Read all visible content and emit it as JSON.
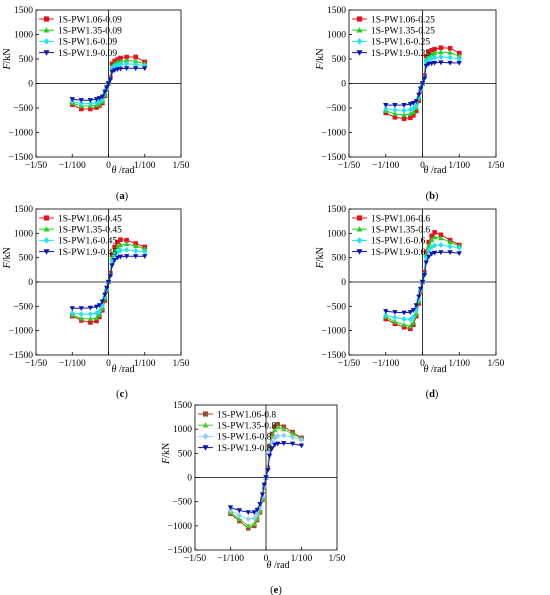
{
  "series_styles": [
    {
      "color": "#e8101a",
      "marker": "square"
    },
    {
      "color": "#1ed21e",
      "marker": "triangle-up"
    },
    {
      "color": "#1ee6f0",
      "marker": "diamond"
    },
    {
      "color": "#0a14b4",
      "marker": "triangle-down"
    }
  ],
  "series_styles_e": [
    {
      "color": "#9b4a2a",
      "marker": "square"
    },
    {
      "color": "#4fcd2b",
      "marker": "triangle-up"
    },
    {
      "color": "#8ecdf5",
      "marker": "diamond"
    },
    {
      "color": "#0a14b4",
      "marker": "triangle-down"
    }
  ],
  "chart_data": [
    {
      "type": "line",
      "panel_label": "(a)",
      "xlabel_symbol": "θ",
      "xlabel_unit": "/rad",
      "ylabel_symbol": "F",
      "ylabel_unit": "/kN",
      "xlim": [
        -0.02,
        0.02
      ],
      "ylim": [
        -1500,
        1500
      ],
      "xticks": [
        -0.02,
        -0.01,
        0,
        0.01,
        0.02
      ],
      "xtick_labels": [
        "−1/50",
        "−1/100",
        "0",
        "1/100",
        "1/50"
      ],
      "yticks": [
        -1500,
        -1000,
        -500,
        0,
        500,
        1000,
        1500
      ],
      "ytick_labels": [
        "−1500",
        "−1000",
        "−500",
        "0",
        "500",
        "1000",
        "1500"
      ],
      "legend_position": "top-left",
      "x": [
        -0.01,
        -0.0075,
        -0.005,
        -0.0033,
        -0.0025,
        -0.0017,
        -0.001,
        -0.0005,
        0,
        0.0005,
        0.001,
        0.0017,
        0.0025,
        0.0033,
        0.005,
        0.0075,
        0.01
      ],
      "series": [
        {
          "name": "1S-PW1.06-0.09",
          "values": [
            -430,
            -520,
            -520,
            -490,
            -450,
            -400,
            -250,
            -120,
            0,
            120,
            400,
            460,
            490,
            520,
            540,
            540,
            440
          ]
        },
        {
          "name": "1S-PW1.35-0.09",
          "values": [
            -400,
            -460,
            -460,
            -440,
            -420,
            -370,
            -230,
            -110,
            0,
            110,
            350,
            400,
            440,
            450,
            470,
            460,
            400
          ]
        },
        {
          "name": "1S-PW1.6-0.09",
          "values": [
            -360,
            -410,
            -410,
            -390,
            -370,
            -330,
            -200,
            -100,
            0,
            100,
            310,
            350,
            380,
            390,
            400,
            390,
            360
          ]
        },
        {
          "name": "1S-PW1.9-0.09",
          "values": [
            -320,
            -340,
            -340,
            -320,
            -300,
            -270,
            -170,
            -80,
            0,
            80,
            240,
            270,
            290,
            300,
            310,
            310,
            310
          ]
        }
      ]
    },
    {
      "type": "line",
      "panel_label": "(b)",
      "xlabel_symbol": "θ",
      "xlabel_unit": "/rad",
      "ylabel_symbol": "F",
      "ylabel_unit": "/kN",
      "xlim": [
        -0.02,
        0.02
      ],
      "ylim": [
        -1500,
        1500
      ],
      "xticks": [
        -0.02,
        -0.01,
        0,
        0.01,
        0.02
      ],
      "xtick_labels": [
        "−1/50",
        "−1/100",
        "0",
        "1/100",
        "1/50"
      ],
      "yticks": [
        -1500,
        -1000,
        -500,
        0,
        500,
        1000,
        1500
      ],
      "ytick_labels": [
        "−1500",
        "−1000",
        "−500",
        "0",
        "500",
        "1000",
        "1500"
      ],
      "legend_position": "top-left",
      "x": [
        -0.01,
        -0.0075,
        -0.005,
        -0.0033,
        -0.0025,
        -0.0017,
        -0.001,
        -0.0005,
        0,
        0.0005,
        0.001,
        0.0017,
        0.0025,
        0.0033,
        0.005,
        0.0075,
        0.01
      ],
      "series": [
        {
          "name": "1S-PW1.06-0.25",
          "values": [
            -600,
            -690,
            -720,
            -700,
            -650,
            -560,
            -350,
            -160,
            0,
            160,
            560,
            640,
            680,
            700,
            730,
            720,
            620
          ]
        },
        {
          "name": "1S-PW1.35-0.25",
          "values": [
            -560,
            -620,
            -640,
            -620,
            -580,
            -500,
            -310,
            -140,
            0,
            140,
            500,
            560,
            600,
            620,
            640,
            630,
            560
          ]
        },
        {
          "name": "1S-PW1.6-0.25",
          "values": [
            -520,
            -540,
            -550,
            -530,
            -510,
            -450,
            -280,
            -120,
            0,
            120,
            440,
            490,
            520,
            530,
            540,
            530,
            500
          ]
        },
        {
          "name": "1S-PW1.9-0.25",
          "values": [
            -440,
            -440,
            -440,
            -420,
            -400,
            -360,
            -230,
            -100,
            0,
            100,
            360,
            400,
            410,
            420,
            430,
            420,
            420
          ]
        }
      ]
    },
    {
      "type": "line",
      "panel_label": "(c)",
      "xlabel_symbol": "θ",
      "xlabel_unit": "/rad",
      "ylabel_symbol": "F",
      "ylabel_unit": "/kN",
      "xlim": [
        -0.02,
        0.02
      ],
      "ylim": [
        -1500,
        1500
      ],
      "xticks": [
        -0.02,
        -0.01,
        0,
        0.01,
        0.02
      ],
      "xtick_labels": [
        "−1/50",
        "−1/100",
        "0",
        "1/100",
        "1/50"
      ],
      "yticks": [
        -1500,
        -1000,
        -500,
        0,
        500,
        1000,
        1500
      ],
      "ytick_labels": [
        "−1500",
        "−1000",
        "−500",
        "0",
        "500",
        "1000",
        "1500"
      ],
      "legend_position": "top-left",
      "x": [
        -0.01,
        -0.0075,
        -0.005,
        -0.0033,
        -0.0025,
        -0.0017,
        -0.001,
        -0.0005,
        0,
        0.0005,
        0.001,
        0.0017,
        0.0025,
        0.0033,
        0.005,
        0.0075,
        0.01
      ],
      "series": [
        {
          "name": "1S-PW1.06-0.45",
          "values": [
            -700,
            -790,
            -830,
            -800,
            -720,
            -580,
            -380,
            -180,
            0,
            180,
            560,
            720,
            820,
            870,
            860,
            790,
            720
          ]
        },
        {
          "name": "1S-PW1.35-0.45",
          "values": [
            -680,
            -750,
            -760,
            -740,
            -680,
            -540,
            -340,
            -160,
            0,
            160,
            500,
            640,
            720,
            760,
            780,
            740,
            680
          ]
        },
        {
          "name": "1S-PW1.6-0.45",
          "values": [
            -640,
            -660,
            -660,
            -640,
            -600,
            -480,
            -300,
            -140,
            0,
            140,
            430,
            560,
            620,
            650,
            660,
            640,
            620
          ]
        },
        {
          "name": "1S-PW1.9-0.45",
          "values": [
            -540,
            -540,
            -530,
            -510,
            -480,
            -400,
            -260,
            -120,
            0,
            120,
            340,
            450,
            500,
            520,
            530,
            530,
            530
          ]
        }
      ]
    },
    {
      "type": "line",
      "panel_label": "(d)",
      "xlabel_symbol": "θ",
      "xlabel_unit": "/rad",
      "ylabel_symbol": "F",
      "ylabel_unit": "/kN",
      "xlim": [
        -0.02,
        0.02
      ],
      "ylim": [
        -1500,
        1500
      ],
      "xticks": [
        -0.02,
        -0.01,
        0,
        0.01,
        0.02
      ],
      "xtick_labels": [
        "−1/50",
        "−1/100",
        "0",
        "1/100",
        "1/50"
      ],
      "yticks": [
        -1500,
        -1000,
        -500,
        0,
        500,
        1000,
        1500
      ],
      "ytick_labels": [
        "−1500",
        "−1000",
        "−500",
        "0",
        "500",
        "1000",
        "1500"
      ],
      "legend_position": "top-left",
      "x": [
        -0.01,
        -0.0075,
        -0.005,
        -0.0033,
        -0.0025,
        -0.0017,
        -0.001,
        -0.0005,
        0,
        0.0005,
        0.001,
        0.0017,
        0.0025,
        0.0033,
        0.005,
        0.0075,
        0.01
      ],
      "series": [
        {
          "name": "1S-PW1.06-0.6",
          "values": [
            -760,
            -860,
            -930,
            -960,
            -880,
            -700,
            -440,
            -200,
            0,
            200,
            620,
            820,
            950,
            1020,
            970,
            860,
            760
          ]
        },
        {
          "name": "1S-PW1.35-0.6",
          "values": [
            -720,
            -820,
            -880,
            -910,
            -840,
            -660,
            -400,
            -180,
            0,
            180,
            560,
            740,
            860,
            920,
            900,
            820,
            740
          ]
        },
        {
          "name": "1S-PW1.6-0.6",
          "values": [
            -680,
            -730,
            -760,
            -770,
            -720,
            -580,
            -360,
            -160,
            0,
            160,
            500,
            650,
            720,
            750,
            760,
            730,
            700
          ]
        },
        {
          "name": "1S-PW1.9-0.6",
          "values": [
            -600,
            -620,
            -630,
            -620,
            -580,
            -480,
            -300,
            -140,
            0,
            140,
            400,
            520,
            580,
            600,
            610,
            610,
            590
          ]
        }
      ]
    },
    {
      "type": "line",
      "panel_label": "(e)",
      "xlabel_symbol": "θ",
      "xlabel_unit": "/rad",
      "ylabel_symbol": "F",
      "ylabel_unit": "/kN",
      "xlim": [
        -0.02,
        0.02
      ],
      "ylim": [
        -1500,
        1500
      ],
      "xticks": [
        -0.02,
        -0.01,
        0,
        0.01,
        0.02
      ],
      "xtick_labels": [
        "−1/50",
        "−1/100",
        "0",
        "1/100",
        "1/50"
      ],
      "yticks": [
        -1500,
        -1000,
        -500,
        0,
        500,
        1000,
        1500
      ],
      "ytick_labels": [
        "−1500",
        "−1000",
        "−500",
        "0",
        "500",
        "1000",
        "1500"
      ],
      "legend_position": "top-left",
      "x": [
        -0.01,
        -0.0075,
        -0.005,
        -0.0033,
        -0.0025,
        -0.0017,
        -0.001,
        -0.0005,
        0,
        0.0005,
        0.001,
        0.0017,
        0.0025,
        0.0033,
        0.005,
        0.0075,
        0.01
      ],
      "series": [
        {
          "name": "1S-PW1.06-0.8",
          "values": [
            -750,
            -900,
            -1050,
            -1000,
            -880,
            -720,
            -460,
            -200,
            0,
            200,
            650,
            900,
            1050,
            1100,
            1050,
            940,
            820
          ]
        },
        {
          "name": "1S-PW1.35-0.8",
          "values": [
            -720,
            -860,
            -1000,
            -960,
            -850,
            -690,
            -430,
            -190,
            0,
            190,
            600,
            840,
            980,
            1040,
            1000,
            900,
            800
          ]
        },
        {
          "name": "1S-PW1.6-0.8",
          "values": [
            -680,
            -780,
            -860,
            -840,
            -760,
            -620,
            -390,
            -170,
            0,
            170,
            540,
            720,
            820,
            860,
            870,
            830,
            780
          ]
        },
        {
          "name": "1S-PW1.9-0.8",
          "values": [
            -620,
            -680,
            -720,
            -720,
            -670,
            -550,
            -350,
            -150,
            0,
            150,
            450,
            600,
            680,
            700,
            710,
            700,
            660
          ]
        }
      ]
    }
  ]
}
